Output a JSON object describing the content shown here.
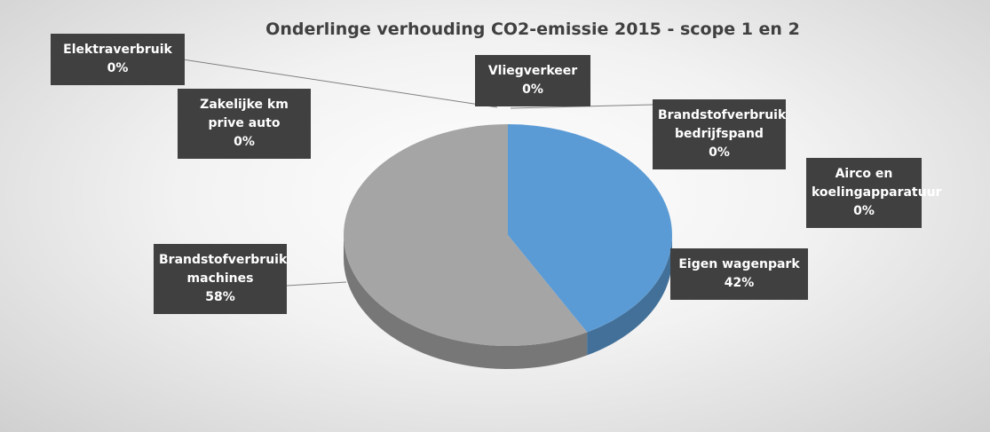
{
  "chart_data": {
    "type": "pie3d",
    "title": "Onderlinge verhouding CO2-emissie 2015 - scope 1 en 2",
    "categories": [
      "Vliegverkeer",
      "Brandstofverbruik bedrijfspand",
      "Airco en koelingapparatuur",
      "Eigen wagenpark",
      "Brandstofverbruik machines",
      "Elektraverbruik",
      "Zakelijke km prive auto"
    ],
    "values": [
      0,
      0,
      0,
      42,
      58,
      0,
      0
    ],
    "value_labels": [
      "0%",
      "0%",
      "0%",
      "42%",
      "58%",
      "0%",
      "0%"
    ],
    "colors": [
      "#ed7d31",
      "#ffc000",
      "#4472c4",
      "#5b9bd5",
      "#a5a5a5",
      "#70ad47",
      "#264478"
    ]
  }
}
